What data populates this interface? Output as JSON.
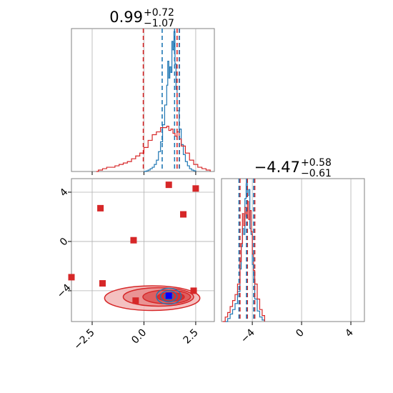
{
  "colors": {
    "blue": "#1f77b4",
    "red": "#d62728",
    "fill_red": "#e88c8c",
    "grid": "#b0b0b0",
    "frame": "#808080"
  },
  "chart_data": [
    {
      "type": "histogram",
      "panel": "top-left",
      "title": {
        "value": "0.99",
        "plus": "+0.72",
        "minus": "−1.07"
      },
      "xlim": [
        -3.5,
        3.4
      ],
      "grid": true,
      "quantile_lines": {
        "blue": [
          0.88,
          1.48,
          1.71
        ],
        "red": [
          -0.03,
          1.6,
          1.71
        ]
      },
      "series": [
        {
          "color": "blue",
          "bins": [
            [
              0.0,
              0.0
            ],
            [
              0.1,
              0.004
            ],
            [
              0.2,
              0.01
            ],
            [
              0.3,
              0.02
            ],
            [
              0.4,
              0.03
            ],
            [
              0.5,
              0.05
            ],
            [
              0.6,
              0.08
            ],
            [
              0.7,
              0.14
            ],
            [
              0.8,
              0.21
            ],
            [
              0.9,
              0.33
            ],
            [
              1.0,
              0.47
            ],
            [
              1.1,
              0.61
            ],
            [
              1.15,
              0.78
            ],
            [
              1.2,
              0.66
            ],
            [
              1.25,
              0.74
            ],
            [
              1.3,
              0.7
            ],
            [
              1.35,
              0.92
            ],
            [
              1.4,
              0.86
            ],
            [
              1.45,
              0.99
            ],
            [
              1.5,
              0.76
            ],
            [
              1.55,
              0.58
            ],
            [
              1.6,
              0.43
            ],
            [
              1.7,
              0.3
            ],
            [
              1.8,
              0.19
            ],
            [
              1.9,
              0.12
            ],
            [
              2.0,
              0.07
            ],
            [
              2.1,
              0.04
            ],
            [
              2.2,
              0.02
            ],
            [
              2.3,
              0.01
            ],
            [
              2.4,
              0.005
            ],
            [
              2.5,
              0.0
            ]
          ]
        },
        {
          "color": "red",
          "bins": [
            [
              -2.3,
              0.0
            ],
            [
              -2.2,
              0.01
            ],
            [
              -2.0,
              0.02
            ],
            [
              -1.8,
              0.03
            ],
            [
              -1.6,
              0.03
            ],
            [
              -1.4,
              0.04
            ],
            [
              -1.2,
              0.05
            ],
            [
              -1.0,
              0.06
            ],
            [
              -0.8,
              0.07
            ],
            [
              -0.6,
              0.09
            ],
            [
              -0.4,
              0.11
            ],
            [
              -0.2,
              0.13
            ],
            [
              0.0,
              0.17
            ],
            [
              0.2,
              0.22
            ],
            [
              0.4,
              0.26
            ],
            [
              0.6,
              0.28
            ],
            [
              0.8,
              0.31
            ],
            [
              1.0,
              0.31
            ],
            [
              1.1,
              0.32
            ],
            [
              1.2,
              0.29
            ],
            [
              1.3,
              0.3
            ],
            [
              1.4,
              0.27
            ],
            [
              1.5,
              0.25
            ],
            [
              1.6,
              0.28
            ],
            [
              1.7,
              0.23
            ],
            [
              1.8,
              0.18
            ],
            [
              2.0,
              0.13
            ],
            [
              2.2,
              0.08
            ],
            [
              2.4,
              0.05
            ],
            [
              2.6,
              0.03
            ],
            [
              2.8,
              0.02
            ],
            [
              3.0,
              0.01
            ],
            [
              3.2,
              0.0
            ]
          ]
        }
      ]
    },
    {
      "type": "scatter",
      "panel": "bottom-left",
      "xlim": [
        -3.5,
        3.4
      ],
      "ylim": [
        -6.5,
        5.1
      ],
      "xticks": [
        "−2.5",
        "0.0",
        "2.5"
      ],
      "xtick_values": [
        -2.5,
        0.0,
        2.5
      ],
      "yticks": [
        "−4",
        "0",
        "4"
      ],
      "ytick_values": [
        -4,
        0,
        4
      ],
      "grid": true,
      "contours_red": [
        {
          "cx": 0.4,
          "cy": -4.6,
          "rx": 2.3,
          "ry": 1.0
        },
        {
          "cx": 0.7,
          "cy": -4.5,
          "rx": 1.7,
          "ry": 0.75
        },
        {
          "cx": 1.1,
          "cy": -4.5,
          "rx": 1.15,
          "ry": 0.55
        },
        {
          "cx": 1.3,
          "cy": -4.5,
          "rx": 0.65,
          "ry": 0.35
        }
      ],
      "contours_blue": [
        {
          "cx": 1.2,
          "cy": -4.45,
          "rx": 0.6,
          "ry": 0.65
        },
        {
          "cx": 1.2,
          "cy": -4.45,
          "rx": 0.4,
          "ry": 0.45
        },
        {
          "cx": 1.2,
          "cy": -4.45,
          "rx": 0.22,
          "ry": 0.28
        }
      ],
      "red_markers": [
        [
          -2.1,
          2.7
        ],
        [
          -2.0,
          -3.4
        ],
        [
          -0.5,
          0.1
        ],
        [
          -0.4,
          -4.8
        ],
        [
          1.2,
          4.6
        ],
        [
          1.9,
          2.2
        ],
        [
          2.5,
          4.3
        ],
        [
          2.4,
          -4.0
        ],
        [
          -3.5,
          -2.9
        ]
      ],
      "blue_marker": [
        1.2,
        -4.4
      ]
    },
    {
      "type": "histogram",
      "panel": "bottom-right",
      "title": {
        "value": "−4.47",
        "plus": "+0.58",
        "minus": "−0.61"
      },
      "xlim": [
        -6.5,
        5.1
      ],
      "xticks": [
        "−4",
        "0",
        "4"
      ],
      "xtick_values": [
        -4,
        0,
        4
      ],
      "grid": true,
      "quantile_lines": {
        "blue": [
          -5.08,
          -4.47,
          -3.89
        ],
        "red": [
          -5.0,
          -4.4,
          -3.8
        ]
      },
      "series": [
        {
          "color": "blue",
          "bins": [
            [
              -6.2,
              0.0
            ],
            [
              -6.0,
              0.02
            ],
            [
              -5.8,
              0.05
            ],
            [
              -5.6,
              0.08
            ],
            [
              -5.4,
              0.12
            ],
            [
              -5.2,
              0.2
            ],
            [
              -5.0,
              0.35
            ],
            [
              -4.9,
              0.5
            ],
            [
              -4.8,
              0.62
            ],
            [
              -4.7,
              0.58
            ],
            [
              -4.6,
              0.82
            ],
            [
              -4.5,
              0.92
            ],
            [
              -4.4,
              0.84
            ],
            [
              -4.3,
              0.88
            ],
            [
              -4.2,
              0.62
            ],
            [
              -4.1,
              0.58
            ],
            [
              -4.0,
              0.38
            ],
            [
              -3.9,
              0.28
            ],
            [
              -3.8,
              0.15
            ],
            [
              -3.6,
              0.07
            ],
            [
              -3.4,
              0.03
            ],
            [
              -3.2,
              0.01
            ],
            [
              -3.0,
              0.0
            ]
          ]
        },
        {
          "color": "red",
          "bins": [
            [
              -6.4,
              0.0
            ],
            [
              -6.2,
              0.03
            ],
            [
              -6.0,
              0.06
            ],
            [
              -5.8,
              0.1
            ],
            [
              -5.6,
              0.14
            ],
            [
              -5.4,
              0.18
            ],
            [
              -5.2,
              0.25
            ],
            [
              -5.0,
              0.4
            ],
            [
              -4.9,
              0.52
            ],
            [
              -4.8,
              0.72
            ],
            [
              -4.7,
              0.64
            ],
            [
              -4.6,
              0.76
            ],
            [
              -4.5,
              0.7
            ],
            [
              -4.4,
              0.8
            ],
            [
              -4.3,
              0.68
            ],
            [
              -4.2,
              0.74
            ],
            [
              -4.1,
              0.6
            ],
            [
              -4.0,
              0.45
            ],
            [
              -3.9,
              0.34
            ],
            [
              -3.8,
              0.25
            ],
            [
              -3.6,
              0.15
            ],
            [
              -3.4,
              0.08
            ],
            [
              -3.2,
              0.04
            ],
            [
              -3.0,
              0.0
            ]
          ]
        }
      ]
    }
  ]
}
